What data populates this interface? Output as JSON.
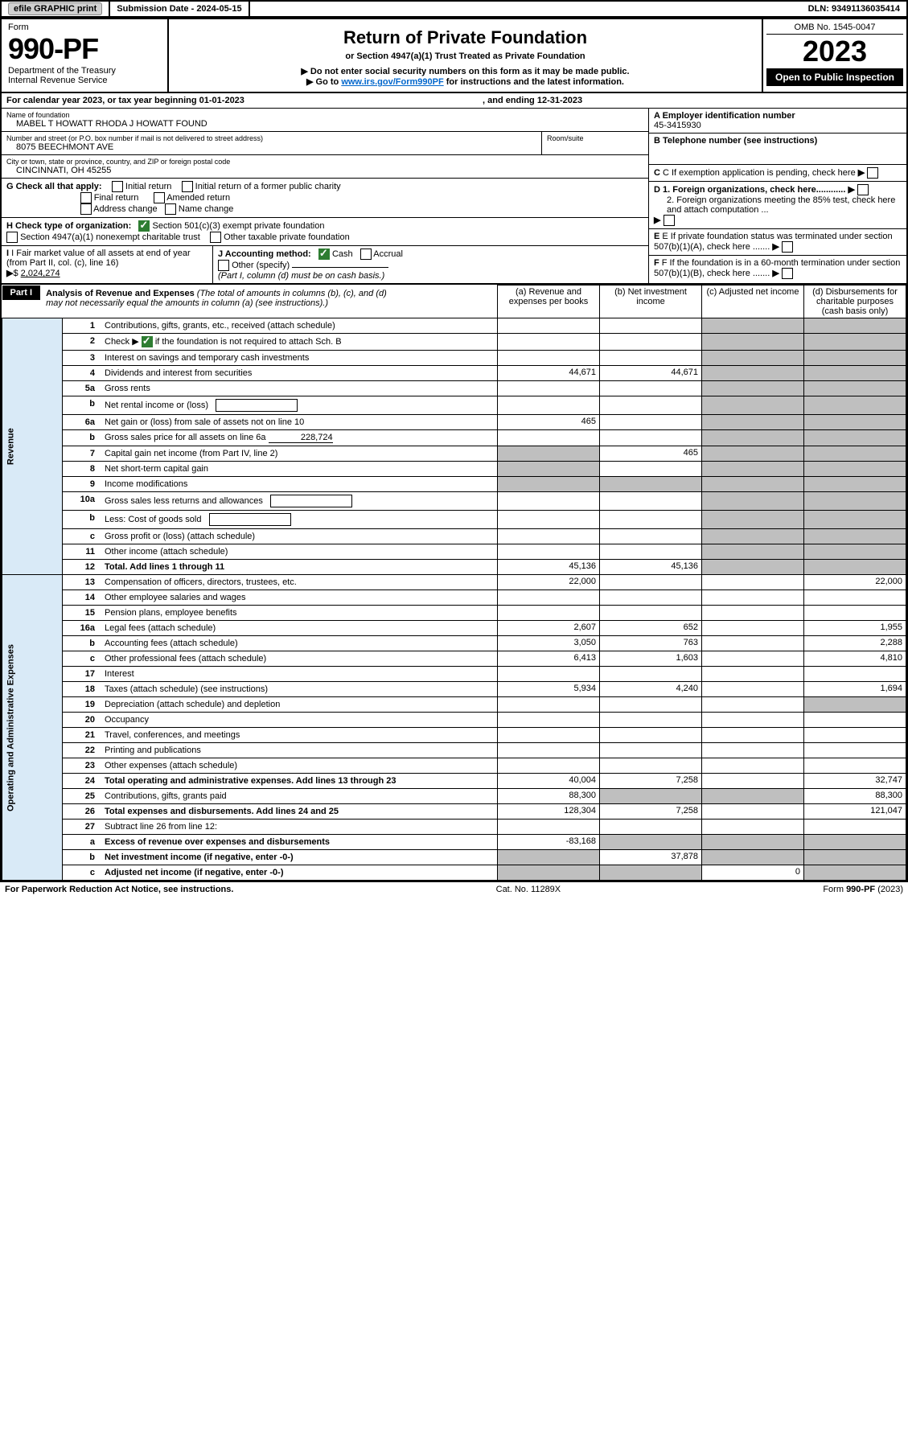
{
  "topbar": {
    "efile": "efile GRAPHIC print",
    "subdate_label": "Submission Date - 2024-05-15",
    "dln": "DLN: 93491136035414"
  },
  "header": {
    "form_word": "Form",
    "form_num": "990-PF",
    "dept": "Department of the Treasury",
    "irs": "Internal Revenue Service",
    "title": "Return of Private Foundation",
    "subtitle": "or Section 4947(a)(1) Trust Treated as Private Foundation",
    "note1": "▶ Do not enter social security numbers on this form as it may be made public.",
    "note2_pre": "▶ Go to ",
    "note2_link": "www.irs.gov/Form990PF",
    "note2_post": " for instructions and the latest information.",
    "omb": "OMB No. 1545-0047",
    "year": "2023",
    "open": "Open to Public Inspection"
  },
  "cal": {
    "line": "For calendar year 2023, or tax year beginning 01-01-2023",
    "end": ", and ending 12-31-2023"
  },
  "ident": {
    "name_label": "Name of foundation",
    "name": "MABEL T HOWATT RHODA J HOWATT FOUND",
    "addr_label": "Number and street (or P.O. box number if mail is not delivered to street address)",
    "room": "Room/suite",
    "addr": "8075 BEECHMONT AVE",
    "city_label": "City or town, state or province, country, and ZIP or foreign postal code",
    "city": "CINCINNATI, OH  45255",
    "A": "A Employer identification number",
    "A_val": "45-3415930",
    "B": "B Telephone number (see instructions)",
    "C": "C If exemption application is pending, check here",
    "D1": "D 1. Foreign organizations, check here............",
    "D2": "2. Foreign organizations meeting the 85% test, check here and attach computation ...",
    "E": "E  If private foundation status was terminated under section 507(b)(1)(A), check here .......",
    "F": "F  If the foundation is in a 60-month termination under section 507(b)(1)(B), check here .......",
    "G": "G Check all that apply:",
    "G1": "Initial return",
    "G2": "Initial return of a former public charity",
    "G3": "Final return",
    "G4": "Amended return",
    "G5": "Address change",
    "G6": "Name change",
    "H": "H Check type of organization:",
    "H1": "Section 501(c)(3) exempt private foundation",
    "H2": "Section 4947(a)(1) nonexempt charitable trust",
    "H3": "Other taxable private foundation",
    "I": "I Fair market value of all assets at end of year (from Part II, col. (c), line 16)",
    "I_val": "2,024,274",
    "J": "J Accounting method:",
    "J1": "Cash",
    "J2": "Accrual",
    "J3": "Other (specify)",
    "J_note": "(Part I, column (d) must be on cash basis.)"
  },
  "part1": {
    "label": "Part I",
    "title": "Analysis of Revenue and Expenses",
    "title_note": "(The total of amounts in columns (b), (c), and (d) may not necessarily equal the amounts in column (a) (see instructions).)",
    "col_a": "(a)   Revenue and expenses per books",
    "col_b": "(b)   Net investment income",
    "col_c": "(c)   Adjusted net income",
    "col_d": "(d)  Disbursements for charitable purposes (cash basis only)"
  },
  "side": {
    "rev": "Revenue",
    "exp": "Operating and Administrative Expenses"
  },
  "rows": [
    {
      "n": "1",
      "d": "Contributions, gifts, grants, etc., received (attach schedule)"
    },
    {
      "n": "2",
      "d": "Check ▶",
      "d2": " if the foundation is not required to attach Sch. B",
      "ck": true
    },
    {
      "n": "3",
      "d": "Interest on savings and temporary cash investments"
    },
    {
      "n": "4",
      "d": "Dividends and interest from securities",
      "a": "44,671",
      "b": "44,671"
    },
    {
      "n": "5a",
      "d": "Gross rents"
    },
    {
      "n": "b",
      "d": "Net rental income or (loss)",
      "box": true
    },
    {
      "n": "6a",
      "d": "Net gain or (loss) from sale of assets not on line 10",
      "a": "465"
    },
    {
      "n": "b",
      "d": "Gross sales price for all assets on line 6a",
      "inline": "228,724"
    },
    {
      "n": "7",
      "d": "Capital gain net income (from Part IV, line 2)",
      "b": "465",
      "ga": true
    },
    {
      "n": "8",
      "d": "Net short-term capital gain",
      "ga": true
    },
    {
      "n": "9",
      "d": "Income modifications",
      "ga": true,
      "gb": true
    },
    {
      "n": "10a",
      "d": "Gross sales less returns and allowances",
      "box": true
    },
    {
      "n": "b",
      "d": "Less: Cost of goods sold",
      "box": true
    },
    {
      "n": "c",
      "d": "Gross profit or (loss) (attach schedule)"
    },
    {
      "n": "11",
      "d": "Other income (attach schedule)"
    },
    {
      "n": "12",
      "d": "Total. Add lines 1 through 11",
      "bold": true,
      "a": "45,136",
      "b": "45,136"
    },
    {
      "n": "13",
      "d": "Compensation of officers, directors, trustees, etc.",
      "a": "22,000",
      "dd": "22,000"
    },
    {
      "n": "14",
      "d": "Other employee salaries and wages"
    },
    {
      "n": "15",
      "d": "Pension plans, employee benefits"
    },
    {
      "n": "16a",
      "d": "Legal fees (attach schedule)",
      "a": "2,607",
      "b": "652",
      "dd": "1,955"
    },
    {
      "n": "b",
      "d": "Accounting fees (attach schedule)",
      "a": "3,050",
      "b": "763",
      "dd": "2,288"
    },
    {
      "n": "c",
      "d": "Other professional fees (attach schedule)",
      "a": "6,413",
      "b": "1,603",
      "dd": "4,810"
    },
    {
      "n": "17",
      "d": "Interest"
    },
    {
      "n": "18",
      "d": "Taxes (attach schedule) (see instructions)",
      "a": "5,934",
      "b": "4,240",
      "dd": "1,694"
    },
    {
      "n": "19",
      "d": "Depreciation (attach schedule) and depletion",
      "gd": true
    },
    {
      "n": "20",
      "d": "Occupancy"
    },
    {
      "n": "21",
      "d": "Travel, conferences, and meetings"
    },
    {
      "n": "22",
      "d": "Printing and publications"
    },
    {
      "n": "23",
      "d": "Other expenses (attach schedule)"
    },
    {
      "n": "24",
      "d": "Total operating and administrative expenses. Add lines 13 through 23",
      "bold": true,
      "a": "40,004",
      "b": "7,258",
      "dd": "32,747"
    },
    {
      "n": "25",
      "d": "Contributions, gifts, grants paid",
      "a": "88,300",
      "gb": true,
      "gc": true,
      "dd": "88,300"
    },
    {
      "n": "26",
      "d": "Total expenses and disbursements. Add lines 24 and 25",
      "bold": true,
      "a": "128,304",
      "b": "7,258",
      "dd": "121,047"
    },
    {
      "n": "27",
      "d": "Subtract line 26 from line 12:"
    },
    {
      "n": "a",
      "d": "Excess of revenue over expenses and disbursements",
      "bold": true,
      "a": "-83,168",
      "gb": true,
      "gc": true,
      "gd": true
    },
    {
      "n": "b",
      "d": "Net investment income (if negative, enter -0-)",
      "bold": true,
      "ga": true,
      "b": "37,878",
      "gc": true,
      "gd": true
    },
    {
      "n": "c",
      "d": "Adjusted net income (if negative, enter -0-)",
      "bold": true,
      "ga": true,
      "gb": true,
      "c": "0",
      "gd": true
    }
  ],
  "footer": {
    "left": "For Paperwork Reduction Act Notice, see instructions.",
    "mid": "Cat. No. 11289X",
    "right": "Form 990-PF (2023)"
  }
}
